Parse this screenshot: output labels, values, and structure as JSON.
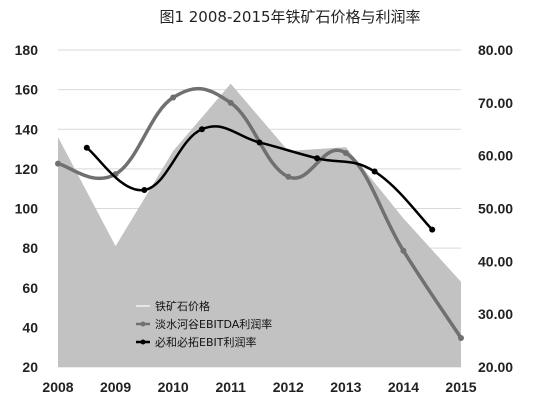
{
  "chart_data": {
    "type": "line",
    "title": "图1 2008-2015年铁矿石价格与利润率",
    "categories": [
      "2008",
      "2009",
      "2010",
      "2011",
      "2012",
      "2013",
      "2014",
      "2015"
    ],
    "y_left": {
      "min": 20,
      "max": 180,
      "step": 20,
      "ticks": [
        "180",
        "160",
        "140",
        "120",
        "100",
        "80",
        "60",
        "40",
        "20"
      ]
    },
    "y_right": {
      "min": 20,
      "max": 80,
      "step": 10,
      "ticks": [
        "80.00",
        "70.00",
        "60.00",
        "50.00",
        "40.00",
        "30.00",
        "20.00"
      ]
    },
    "grid": true,
    "legend_position": "bottom-left-inside",
    "series": [
      {
        "name": "铁矿石价格",
        "kind": "area",
        "axis": "left",
        "color": "#c2c2c2",
        "x": [
          0.0,
          1.0,
          2.0,
          3.0,
          4.0,
          5.0,
          6.0,
          7.0
        ],
        "values": [
          136,
          81,
          129,
          163,
          129,
          131,
          95,
          63
        ]
      },
      {
        "name": "淡水河谷EBITDA利润率",
        "kind": "line",
        "axis": "right",
        "color": "#707070",
        "x": [
          0.0,
          1.0,
          2.0,
          3.0,
          4.0,
          5.0,
          6.0,
          7.0
        ],
        "values": [
          58.5,
          56.5,
          71.0,
          70.0,
          56.0,
          60.5,
          42.0,
          25.5
        ]
      },
      {
        "name": "必和必拓EBIT利润率",
        "kind": "line",
        "axis": "right",
        "color": "#000000",
        "x": [
          0.5,
          1.5,
          2.5,
          3.5,
          4.5,
          5.5,
          6.5
        ],
        "values": [
          61.5,
          53.5,
          65.0,
          62.5,
          59.5,
          57.0,
          46.0
        ]
      }
    ]
  }
}
